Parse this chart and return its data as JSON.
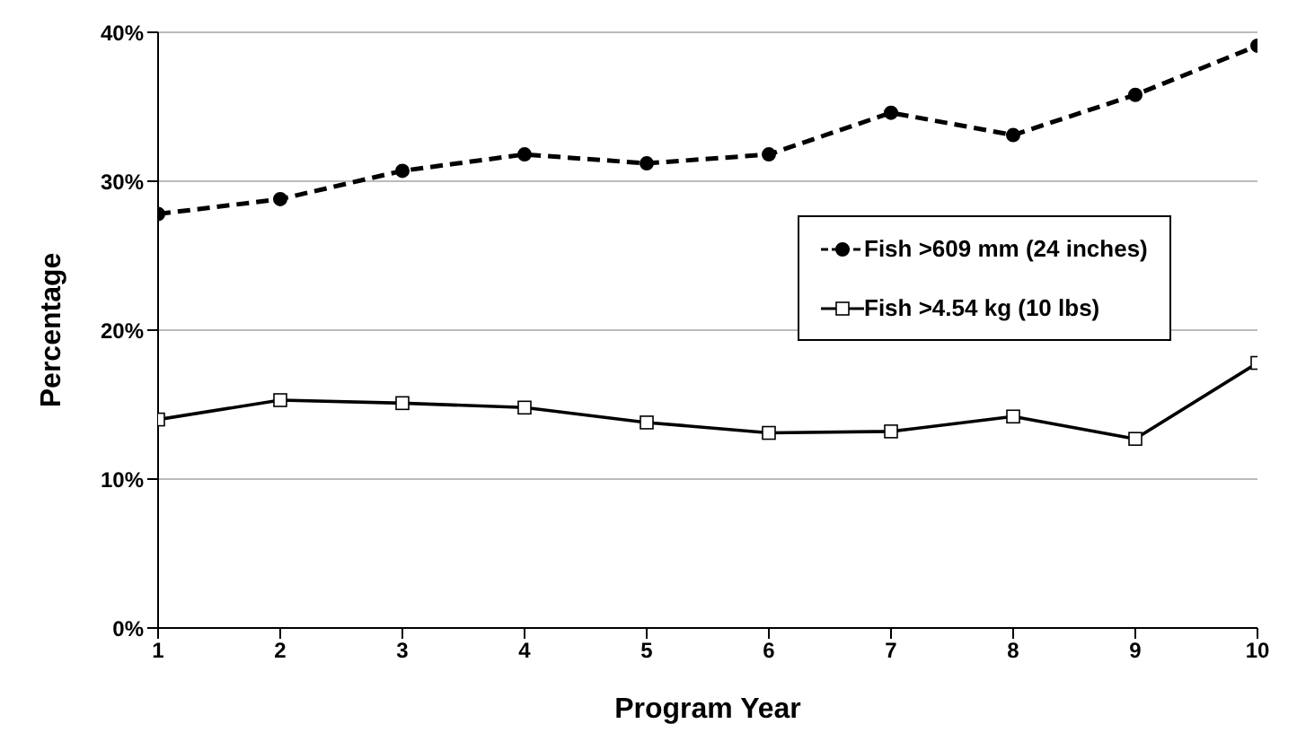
{
  "chart_data": {
    "type": "line",
    "xlabel": "Program Year",
    "ylabel": "Percentage",
    "x": [
      1,
      2,
      3,
      4,
      5,
      6,
      7,
      8,
      9,
      10
    ],
    "series": [
      {
        "name": "Fish >609 mm (24 inches)",
        "color": "#000000",
        "marker": "circle",
        "line_style": "dashed",
        "values": [
          27.8,
          28.8,
          30.7,
          31.8,
          31.2,
          31.8,
          34.6,
          33.1,
          35.8,
          39.1
        ]
      },
      {
        "name": "Fish >4.54 kg (10 lbs)",
        "color": "#000000",
        "marker": "square",
        "line_style": "solid",
        "values": [
          14.0,
          15.3,
          15.1,
          14.8,
          13.8,
          13.1,
          13.2,
          14.2,
          12.7,
          17.8
        ]
      }
    ],
    "xlim": [
      1,
      10
    ],
    "xticks": [
      1,
      2,
      3,
      4,
      5,
      6,
      7,
      8,
      9,
      10
    ],
    "ylim": [
      0,
      40
    ],
    "yticks": [
      {
        "value": 0,
        "label": "0%"
      },
      {
        "value": 10,
        "label": "10%"
      },
      {
        "value": 20,
        "label": "20%"
      },
      {
        "value": 30,
        "label": "30%"
      },
      {
        "value": 40,
        "label": "40%"
      }
    ],
    "grid": "y",
    "legend": "right"
  }
}
